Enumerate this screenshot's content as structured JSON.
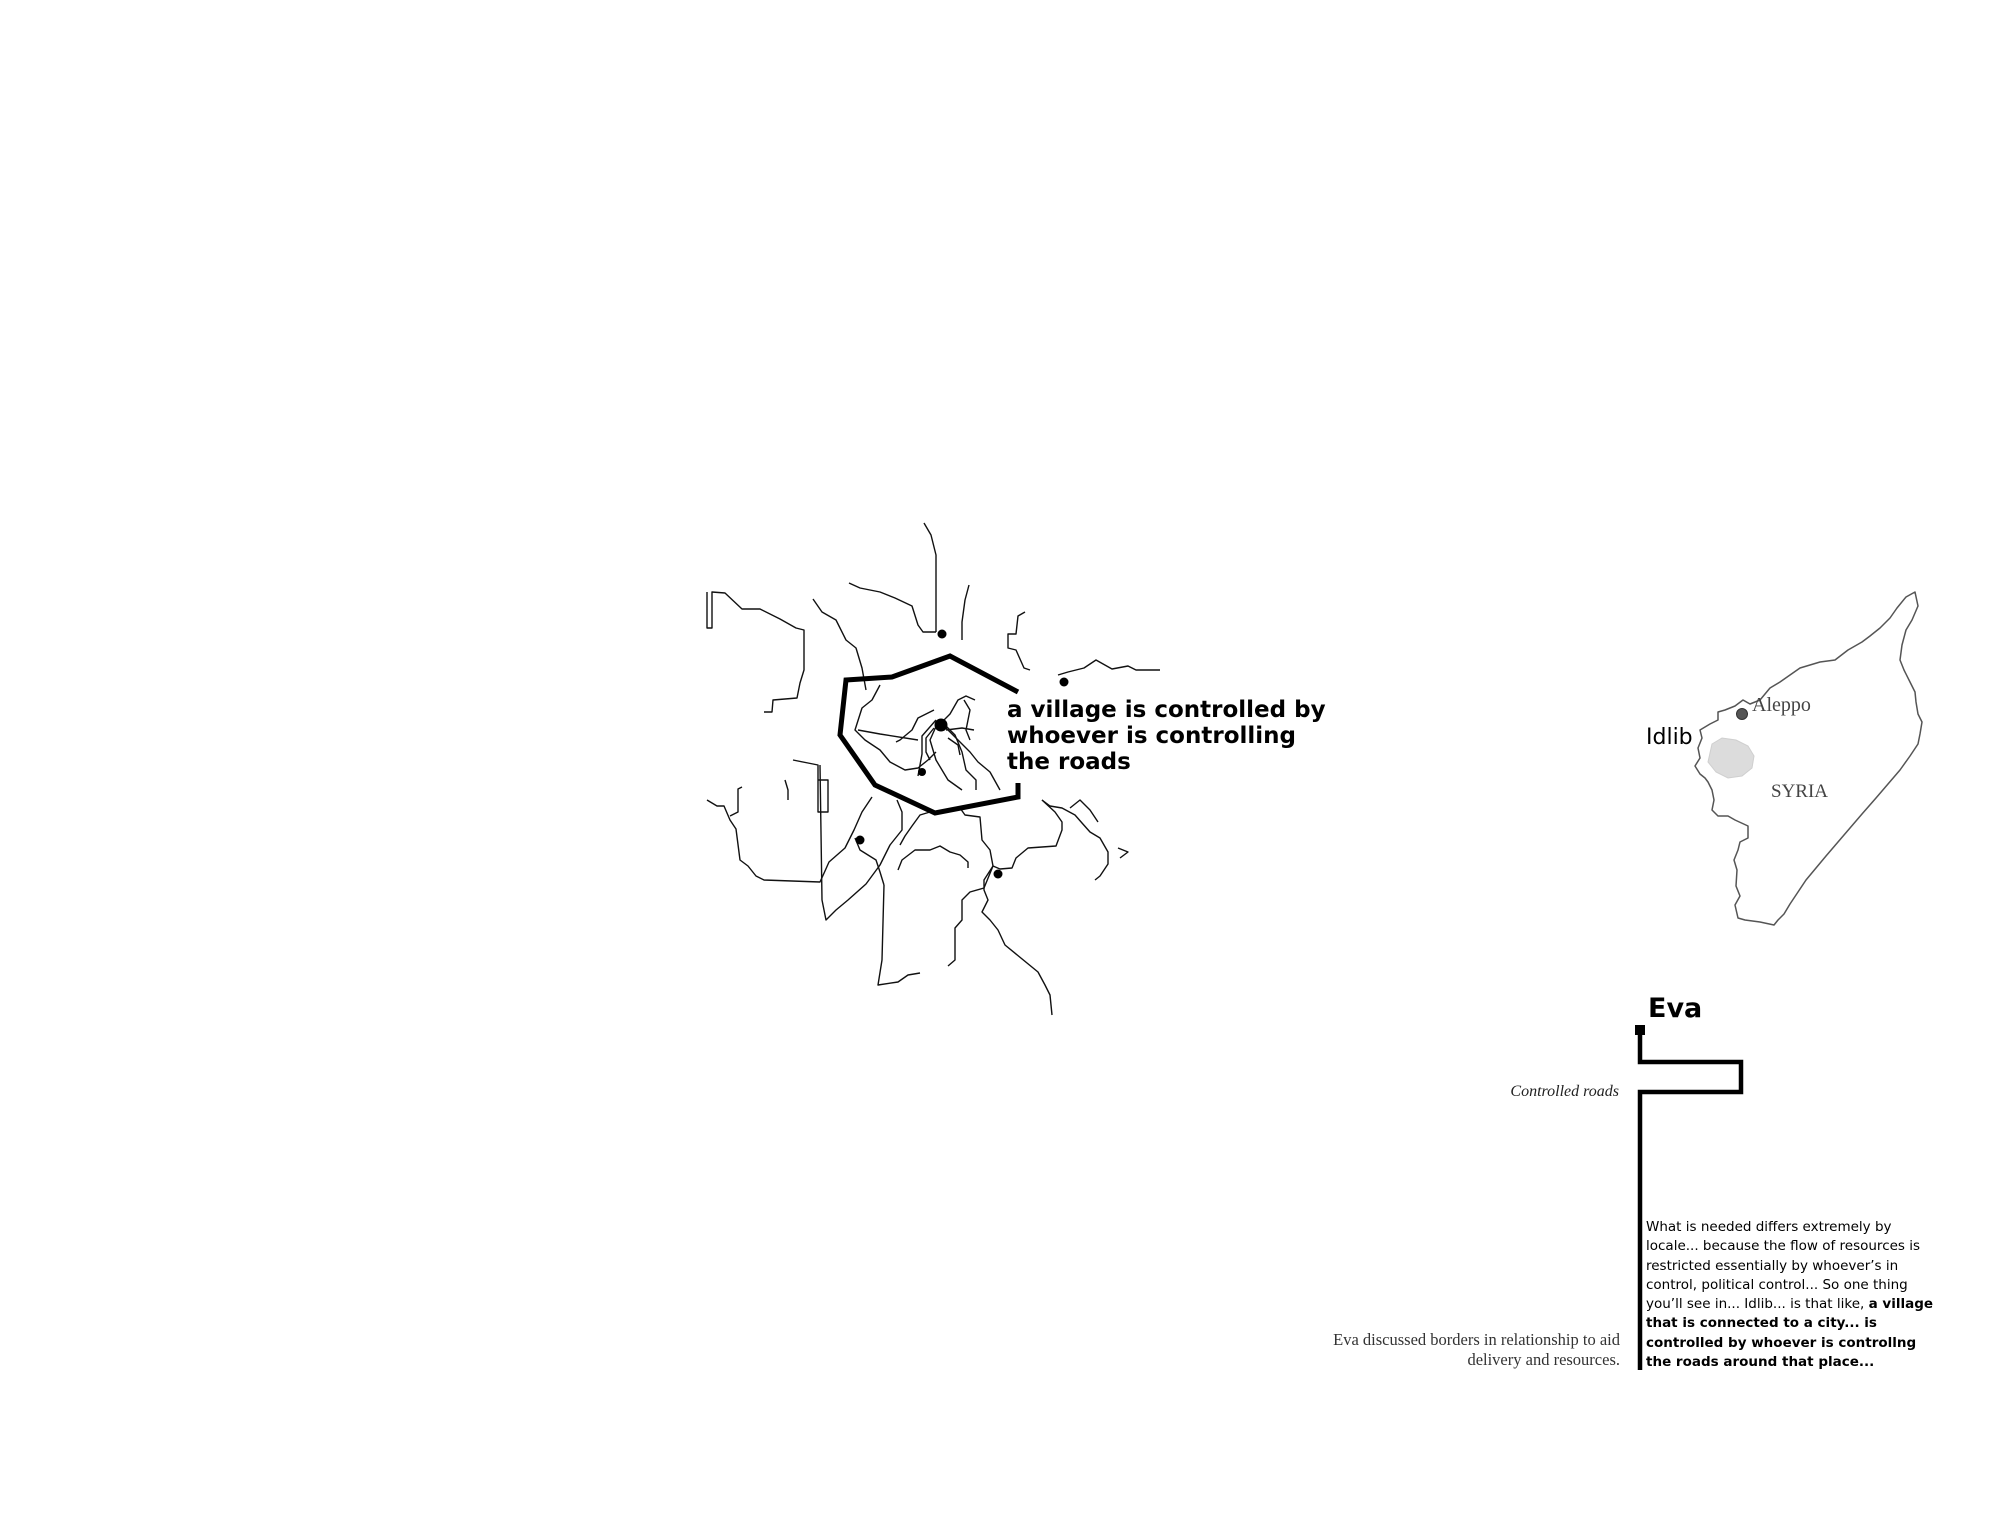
{
  "road_diagram": {
    "callout_lines": [
      "a village is controlled by",
      "whoever is controlling",
      "the roads"
    ]
  },
  "inset_map": {
    "country_label": "SYRIA",
    "city_label": "Aleppo",
    "region_label": "Idlib"
  },
  "entry": {
    "speaker": "Eva",
    "subtitle": "Controlled roads",
    "description": "Eva discussed borders in relationship to aid delivery and resources.",
    "quote_plain": "What is needed differs extremely by locale... because the flow of resources is restricted essentially by whoever’s in control, political control... So one thing you’ll see in... Idlib... is that like, ",
    "quote_bold": "a village that is connected to a city... is controlled by whoever is controllng the roads around that place..."
  },
  "colors": {
    "ink": "#000000",
    "map_outline": "#555555",
    "idlib_fill": "#dcdcdc",
    "aleppo_dot": "#555555"
  }
}
